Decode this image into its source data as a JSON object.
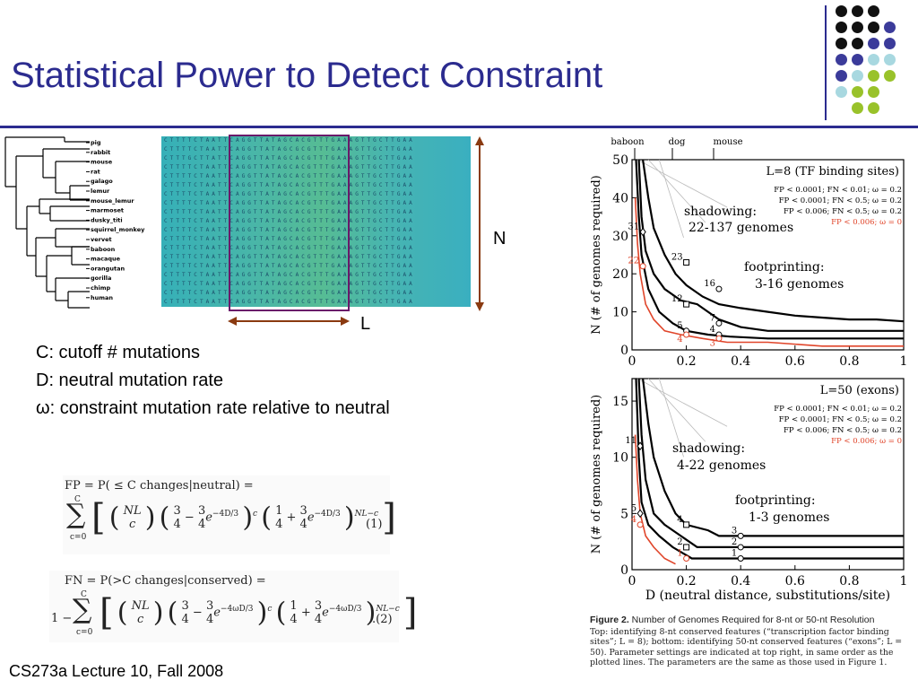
{
  "slide": {
    "title": "Statistical Power to Detect Constraint",
    "footer": "CS273a Lecture 10, Fall 2008"
  },
  "theme": {
    "title_color": "#2b2b8f",
    "dot_black": "#111111",
    "dot_purple": "#3b3b9a",
    "dot_lightblue": "#a8d8e0",
    "dot_green": "#99c22a",
    "alignment_box": "#6a1a6a",
    "arrow": "#8a3a10",
    "red_line": "#e0452a"
  },
  "tree": {
    "species": [
      "pig",
      "rabbit",
      "mouse",
      "rat",
      "galago",
      "lemur",
      "mouse_lemur",
      "marmoset",
      "dusky_titi",
      "squirrel_monkey",
      "vervet",
      "baboon",
      "macaque",
      "orangutan",
      "gorilla",
      "chimp",
      "human"
    ]
  },
  "alignment": {
    "rows": [
      "CTTTTCTAATTCAGGTTATAGCACGTTTGAAAGTTGCTTGAA",
      "CTTTTCTAATTCAGGTTATAGCGCGTTTGAAAGTTGCTTGAA",
      "CTTTGCTTATTCAGGTTATAGCACGTTTGAAAGTTGCTTGAA",
      "CTTTTCTAATTCAGGTTATAGCACGTTTGAAAGTTGCTTGAA",
      "CTTTTCTAATTCAGGTTATAGCACGTTTGAAAGTTGCTTGAA",
      "CTTTTCTAATTCAGGTTATAGCACGTTTGAAAGTTGCTTGAA",
      "CTTTTCTAATTCAGGTTATAGCACGTTTGAAAGTTGCTTGAA",
      "CTTTTCTAATTCAGGTTATAGCACGTTTGAAAGTTGCTTGAA",
      "CTTTTCTAATTCAGGTTATAGCACGTTTGAAAGTTGCTTGAA",
      "CTTTTCTAATTCAGGTTATAGCACGTTTGAAAGTTGCTTGAA",
      "CTTTTCTAATTCAGGTTATAGCACGTTTGAAAGTTGCTTGAA",
      "CTTTTCTAATTCAGGTTATAGCACGTTTGAAAGTTGCTTGAA",
      "CTTTTCTAATTCAGGTTATAGCACGTTTGAAAGTTGCTTGAA",
      "CTTTTCTAATTCAGGTTATAGCACGTTTGAAAGTTGCTTGAA",
      "CTTTTCTAATTCAGGTTATAGCACGTTTGAAAGTTGCTTGAA",
      "CTTTTCTAATTCAGGTTATAGCACGTTTGAAAGTTGCTTGAA",
      "CTTTTCTAATTCAGGTTATAGCACGTTTGAAAGTTGCTTGAA",
      "CTTTTCTAATTCAGGTTATAGCACGTTTGAAAGTTGCTTGAA",
      "CTTTTCTAATTCAGGTTATAGCACGTTTGAAAGTTGCTTGAA"
    ],
    "L_label": "L",
    "N_label": "N"
  },
  "params": {
    "C": "C: cutoff # mutations",
    "D": "D: neutral mutation rate",
    "omega_symbol": "ω",
    "omega": ": constraint mutation rate relative to neutral"
  },
  "equations": {
    "fp_head": "FP = P( ≤ C changes|neutral) =",
    "fn_head": "FN = P(>C changes|conserved) =",
    "eq1_num": "(1)",
    "eq2_num": ".(2)"
  },
  "figure": {
    "top_species": [
      "baboon",
      "dog",
      "mouse"
    ],
    "panel1": {
      "title": "L=8 (TF binding sites)",
      "params": [
        "FP < 0.0001; FN < 0.01; ω = 0.2",
        "FP < 0.0001; FN < 0.5; ω = 0.2",
        "FP < 0.006; FN < 0.5; ω = 0.2",
        "FP < 0.006; ω = 0"
      ],
      "shadowing": [
        "shadowing:",
        "22-137 genomes"
      ],
      "footprinting": [
        "footprinting:",
        "3-16 genomes"
      ],
      "markers": [
        "31",
        "22",
        "23",
        "12",
        "16",
        "7",
        "5",
        "4",
        "4",
        "3"
      ],
      "y_ticks": [
        "0",
        "10",
        "20",
        "30",
        "40",
        "50"
      ],
      "x_ticks": [
        "0",
        "0.2",
        "0.4",
        "0.6",
        "0.8",
        "1"
      ],
      "ylabel": "N (# of genomes required)"
    },
    "panel2": {
      "title": "L=50 (exons)",
      "params": [
        "FP < 0.0001; FN < 0.01; ω = 0.2",
        "FP < 0.0001; FN < 0.5; ω = 0.2",
        "FP < 0.006; FN < 0.5; ω = 0.2",
        "FP < 0.006; ω = 0"
      ],
      "shadowing": [
        "shadowing:",
        "4-22 genomes"
      ],
      "footprinting": [
        "footprinting:",
        "1-3 genomes"
      ],
      "markers": [
        "11",
        "5",
        "4",
        "4",
        "2",
        "1",
        "3",
        "2",
        "1"
      ],
      "y_ticks": [
        "0",
        "5",
        "10",
        "15"
      ],
      "x_ticks": [
        "0",
        "0.2",
        "0.4",
        "0.6",
        "0.8",
        "1"
      ],
      "ylabel": "N (# of genomes required)",
      "xlabel": "D (neutral distance, substitutions/site)"
    },
    "caption_head_bold": "Figure 2.",
    "caption_head": " Number of Genomes Required for 8-nt or 50-nt Resolution",
    "caption": "Top: identifying 8-nt conserved features (“transcription factor binding sites”; L = 8); bottom: identifying 50-nt conserved features (“exons”; L = 50). Parameter settings are indicated at top right, in same order as the plotted lines. The parameters are the same as those used in Figure 1."
  }
}
